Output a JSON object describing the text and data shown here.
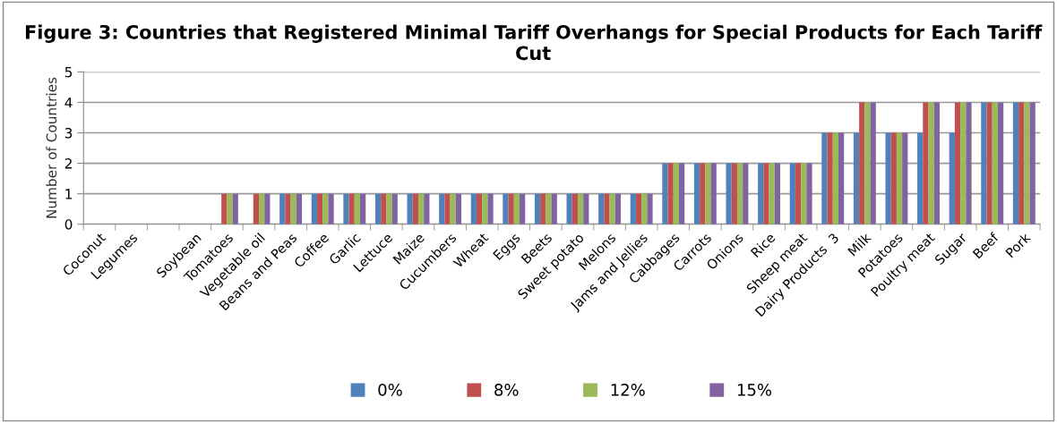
{
  "chart_data": {
    "type": "bar",
    "title": "Figure 3: Countries that Registered Minimal Tariff Overhangs for Special Products for Each Tariff Cut",
    "ylabel": "Number of Countries",
    "categories": [
      "Coconut",
      "Legumes",
      null,
      "Soybean",
      "Tomatoes",
      "Vegetable oil",
      "Beans and Peas",
      "Coffee",
      "Garlic",
      "Lettuce",
      "Maize",
      "Cucumbers",
      "Wheat",
      "Eggs",
      "Beets",
      "Sweet potato",
      "Melons",
      "Jams and Jellies",
      "Cabbages",
      "Carrots",
      "Onions",
      "Rice",
      "Sheep meat",
      "Dairy Products  3",
      "Milk",
      "Potatoes",
      "Poultry meat",
      "Sugar",
      "Beef",
      "Pork"
    ],
    "series": [
      {
        "name": "0%",
        "color": "#4f81bd",
        "values": [
          0,
          0,
          0,
          0,
          0,
          0,
          1,
          1,
          1,
          1,
          1,
          1,
          1,
          1,
          1,
          1,
          1,
          1,
          2,
          2,
          2,
          2,
          2,
          3,
          3,
          3,
          3,
          3,
          4,
          4
        ]
      },
      {
        "name": "8%",
        "color": "#c0504d",
        "values": [
          0,
          0,
          0,
          0,
          1,
          1,
          1,
          1,
          1,
          1,
          1,
          1,
          1,
          1,
          1,
          1,
          1,
          1,
          2,
          2,
          2,
          2,
          2,
          3,
          4,
          3,
          4,
          4,
          4,
          4
        ]
      },
      {
        "name": "12%",
        "color": "#9bbb59",
        "values": [
          0,
          0,
          0,
          0,
          1,
          1,
          1,
          1,
          1,
          1,
          1,
          1,
          1,
          1,
          1,
          1,
          1,
          1,
          2,
          2,
          2,
          2,
          2,
          3,
          4,
          3,
          4,
          4,
          4,
          4
        ]
      },
      {
        "name": "15%",
        "color": "#8064a2",
        "values": [
          0,
          0,
          0,
          0,
          1,
          1,
          1,
          1,
          1,
          1,
          1,
          1,
          1,
          1,
          1,
          1,
          1,
          1,
          2,
          2,
          2,
          2,
          2,
          3,
          4,
          3,
          4,
          4,
          4,
          4
        ]
      }
    ],
    "ylim": [
      0,
      5
    ],
    "yticks": [
      0,
      1,
      2,
      3,
      4,
      5
    ],
    "grid": "y",
    "legend": "bottom"
  }
}
